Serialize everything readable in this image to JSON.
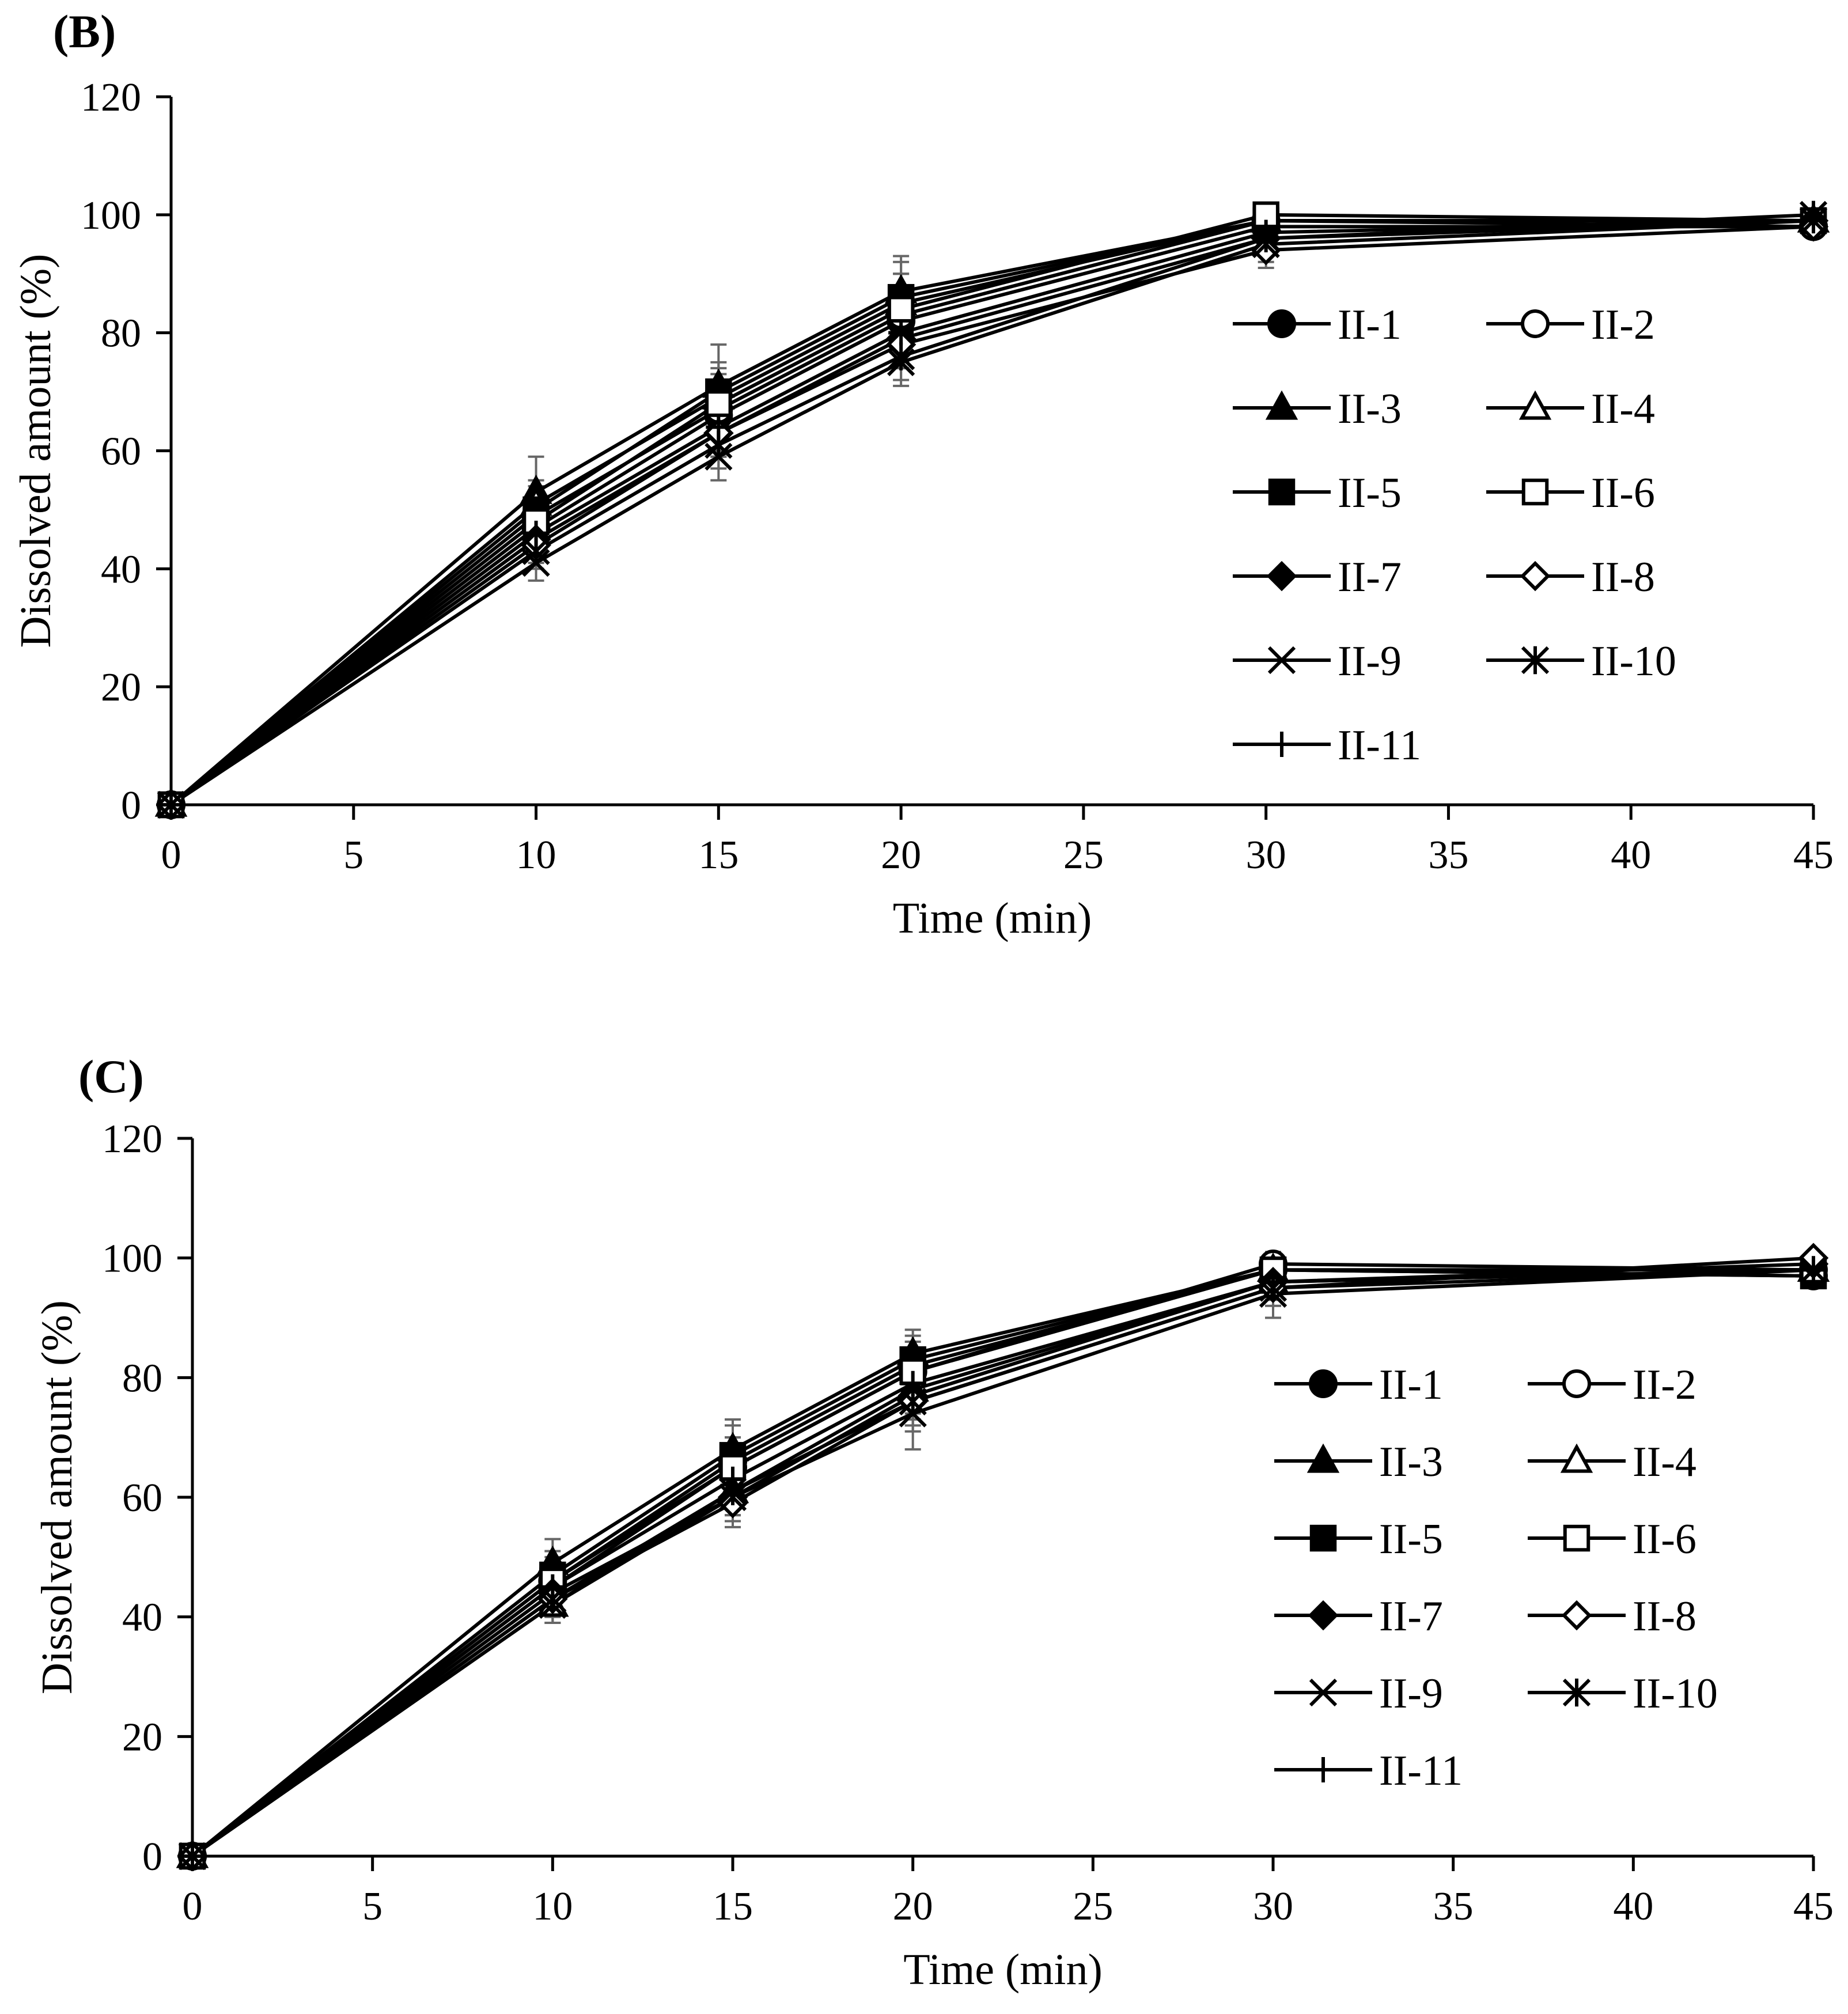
{
  "chart_data": [
    {
      "type": "line",
      "panel_label": "(B)",
      "xlabel": "Time (min)",
      "ylabel": "Dissolved amount (%)",
      "xlim": [
        0,
        45
      ],
      "ylim": [
        0,
        120
      ],
      "xticks": [
        "0",
        "5",
        "10",
        "15",
        "20",
        "25",
        "30",
        "35",
        "40",
        "45"
      ],
      "yticks": [
        "0",
        "20",
        "40",
        "60",
        "80",
        "100",
        "120"
      ],
      "x": [
        0,
        10,
        15,
        20,
        30,
        45
      ],
      "legend_position": "center-right",
      "series": [
        {
          "name": "II-1",
          "marker": "circle-filled",
          "values": [
            0,
            47,
            66,
            82,
            98,
            98
          ],
          "error": [
            0,
            3,
            4,
            5,
            2,
            1
          ]
        },
        {
          "name": "II-2",
          "marker": "circle-open",
          "values": [
            0,
            49,
            67,
            83,
            99,
            98
          ],
          "error": [
            0,
            3,
            5,
            5,
            2,
            1
          ]
        },
        {
          "name": "II-3",
          "marker": "triangle-filled",
          "values": [
            0,
            53,
            71,
            87,
            99,
            99
          ],
          "error": [
            0,
            6,
            7,
            6,
            2,
            1
          ]
        },
        {
          "name": "II-4",
          "marker": "triangle-open",
          "values": [
            0,
            51,
            69,
            85,
            99,
            99
          ],
          "error": [
            0,
            4,
            5,
            5,
            2,
            1
          ]
        },
        {
          "name": "II-5",
          "marker": "square-filled",
          "values": [
            0,
            50,
            70,
            86,
            99,
            99
          ],
          "error": [
            0,
            4,
            5,
            6,
            1,
            1
          ]
        },
        {
          "name": "II-6",
          "marker": "square-open",
          "values": [
            0,
            48,
            68,
            84,
            100,
            99
          ],
          "error": [
            0,
            4,
            5,
            6,
            1,
            1
          ]
        },
        {
          "name": "II-7",
          "marker": "diamond-filled",
          "values": [
            0,
            45,
            63,
            79,
            96,
            99
          ],
          "error": [
            0,
            3,
            4,
            4,
            2,
            1
          ]
        },
        {
          "name": "II-8",
          "marker": "diamond-open",
          "values": [
            0,
            44,
            63,
            78,
            94,
            98
          ],
          "error": [
            0,
            3,
            4,
            4,
            3,
            1
          ]
        },
        {
          "name": "II-9",
          "marker": "x",
          "values": [
            0,
            41,
            59,
            75,
            95,
            99
          ],
          "error": [
            0,
            3,
            4,
            4,
            3,
            1
          ]
        },
        {
          "name": "II-10",
          "marker": "asterisk",
          "values": [
            0,
            43,
            61,
            76,
            96,
            100
          ],
          "error": [
            0,
            3,
            4,
            4,
            2,
            1
          ]
        },
        {
          "name": "II-11",
          "marker": "plus",
          "values": [
            0,
            46,
            64,
            80,
            97,
            99
          ],
          "error": [
            0,
            3,
            4,
            5,
            2,
            1
          ]
        }
      ]
    },
    {
      "type": "line",
      "panel_label": "(C)",
      "xlabel": "Time (min)",
      "ylabel": "Dissolved amount (%)",
      "xlim": [
        0,
        45
      ],
      "ylim": [
        0,
        120
      ],
      "xticks": [
        "0",
        "5",
        "10",
        "15",
        "20",
        "25",
        "30",
        "35",
        "40",
        "45"
      ],
      "yticks": [
        "0",
        "20",
        "40",
        "60",
        "80",
        "100",
        "120"
      ],
      "x": [
        0,
        10,
        15,
        20,
        30,
        45
      ],
      "legend_position": "center-right",
      "series": [
        {
          "name": "II-1",
          "marker": "circle-filled",
          "values": [
            0,
            46,
            66,
            82,
            98,
            97
          ],
          "error": [
            0,
            3,
            4,
            4,
            2,
            1
          ]
        },
        {
          "name": "II-2",
          "marker": "circle-open",
          "values": [
            0,
            45,
            65,
            81,
            99,
            98
          ],
          "error": [
            0,
            3,
            4,
            4,
            2,
            1
          ]
        },
        {
          "name": "II-3",
          "marker": "triangle-filled",
          "values": [
            0,
            49,
            68,
            84,
            98,
            98
          ],
          "error": [
            0,
            4,
            5,
            4,
            2,
            1
          ]
        },
        {
          "name": "II-4",
          "marker": "triangle-open",
          "values": [
            0,
            42,
            61,
            78,
            96,
            98
          ],
          "error": [
            0,
            3,
            4,
            4,
            2,
            1
          ]
        },
        {
          "name": "II-5",
          "marker": "square-filled",
          "values": [
            0,
            47,
            67,
            83,
            98,
            97
          ],
          "error": [
            0,
            4,
            5,
            4,
            2,
            1
          ]
        },
        {
          "name": "II-6",
          "marker": "square-open",
          "values": [
            0,
            46,
            65,
            81,
            98,
            98
          ],
          "error": [
            0,
            4,
            5,
            4,
            2,
            1
          ]
        },
        {
          "name": "II-7",
          "marker": "diamond-filled",
          "values": [
            0,
            44,
            60,
            77,
            96,
            99
          ],
          "error": [
            0,
            3,
            4,
            4,
            2,
            1
          ]
        },
        {
          "name": "II-8",
          "marker": "diamond-open",
          "values": [
            0,
            43,
            59,
            76,
            95,
            100
          ],
          "error": [
            0,
            3,
            4,
            4,
            2,
            1
          ]
        },
        {
          "name": "II-9",
          "marker": "x",
          "values": [
            0,
            42,
            60,
            74,
            94,
            98
          ],
          "error": [
            0,
            3,
            4,
            6,
            4,
            1
          ]
        },
        {
          "name": "II-10",
          "marker": "asterisk",
          "values": [
            0,
            43,
            61,
            76,
            95,
            98
          ],
          "error": [
            0,
            3,
            4,
            5,
            3,
            1
          ]
        },
        {
          "name": "II-11",
          "marker": "plus",
          "values": [
            0,
            45,
            63,
            79,
            96,
            98
          ],
          "error": [
            0,
            3,
            4,
            4,
            2,
            1
          ]
        }
      ]
    }
  ]
}
